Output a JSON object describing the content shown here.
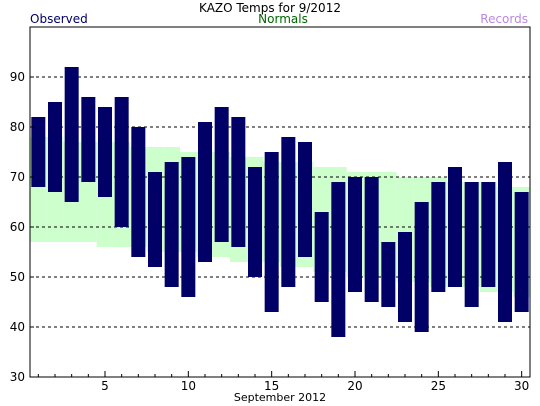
{
  "chart_data": {
    "type": "bar",
    "title": "KAZO Temps for 9/2012",
    "xlabel": "September 2012",
    "ylabel": "",
    "ylim": [
      30,
      100
    ],
    "xlim": [
      0,
      30
    ],
    "y_ticks": [
      30,
      40,
      50,
      60,
      70,
      80,
      90
    ],
    "x_ticks": [
      5,
      10,
      15,
      20,
      25,
      30
    ],
    "grid": "horizontal dashed",
    "legend": [
      {
        "label": "Observed",
        "position": "top-left",
        "color": "#000066"
      },
      {
        "label": "Normals",
        "position": "top-center",
        "color": "#006600"
      },
      {
        "label": "Records",
        "position": "top-right",
        "color": "#bb88dd"
      }
    ],
    "days": [
      1,
      2,
      3,
      4,
      5,
      6,
      7,
      8,
      9,
      10,
      11,
      12,
      13,
      14,
      15,
      16,
      17,
      18,
      19,
      20,
      21,
      22,
      23,
      24,
      25,
      26,
      27,
      28,
      29,
      30
    ],
    "observed_high": [
      82,
      85,
      92,
      86,
      84,
      86,
      80,
      71,
      73,
      74,
      81,
      84,
      82,
      72,
      75,
      78,
      77,
      63,
      69,
      70,
      70,
      57,
      59,
      65,
      69,
      72,
      69,
      69,
      73,
      67
    ],
    "observed_low": [
      68,
      67,
      65,
      69,
      66,
      60,
      54,
      52,
      48,
      46,
      53,
      57,
      56,
      50,
      43,
      48,
      54,
      45,
      38,
      47,
      45,
      44,
      41,
      39,
      47,
      48,
      44,
      48,
      41,
      43
    ],
    "normal_high": [
      78,
      78,
      77,
      77,
      77,
      77,
      76,
      76,
      76,
      75,
      75,
      75,
      74,
      74,
      73,
      73,
      73,
      72,
      72,
      71,
      71,
      71,
      70,
      70,
      70,
      69,
      69,
      69,
      68,
      68
    ],
    "normal_low": [
      57,
      57,
      57,
      57,
      56,
      56,
      56,
      55,
      55,
      55,
      54,
      54,
      53,
      53,
      53,
      52,
      52,
      51,
      51,
      50,
      50,
      50,
      49,
      49,
      48,
      48,
      48,
      47,
      47,
      46
    ]
  },
  "colors": {
    "observed": "#000066",
    "normals_fill": "#ccffcc",
    "grid": "#000000",
    "axis": "#000000"
  }
}
